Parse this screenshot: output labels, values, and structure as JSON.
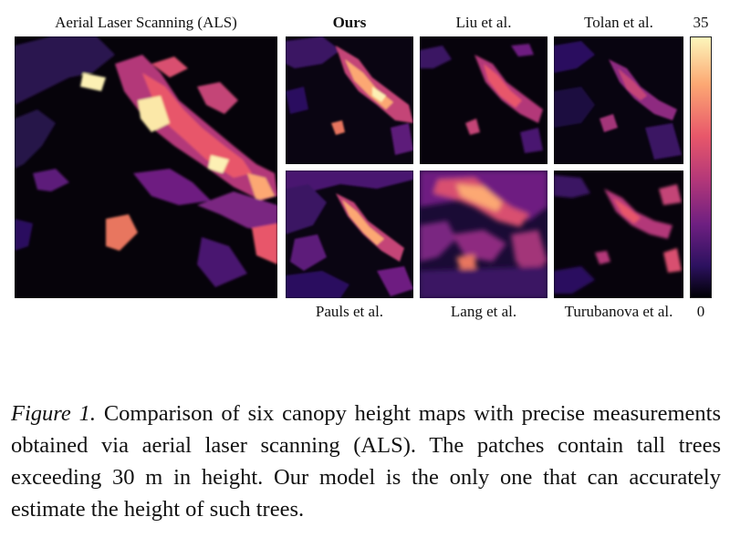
{
  "figure": {
    "top_labels": {
      "als": "Aerial Laser Scanning (ALS)",
      "ours": "Ours",
      "liu": "Liu et al.",
      "tolan": "Tolan et al."
    },
    "bottom_labels": {
      "pauls": "Pauls et al.",
      "lang": "Lang et al.",
      "turubanova": "Turubanova et al."
    },
    "colorbar": {
      "max": "35",
      "min": "0"
    },
    "colors": {
      "low": "#000004",
      "mid": "#b33779",
      "high": "#fcf6bb"
    }
  },
  "caption": {
    "label": "Figure 1.",
    "text": "Comparison of six canopy height maps with precise measurements obtained via aerial laser scanning (ALS). The patches contain tall trees exceeding 30 m in height. Our model is the only one that can accurately estimate the height of such trees."
  }
}
